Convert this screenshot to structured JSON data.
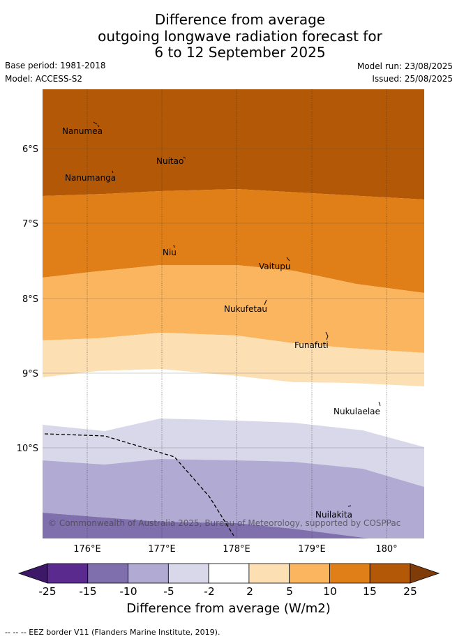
{
  "title": {
    "line1": "Difference from average",
    "line2": "outgoing longwave radiation forecast for",
    "line3": "6 to 12 September 2025"
  },
  "meta": {
    "base_period": "Base period: 1981-2018",
    "model": "Model: ACCESS-S2",
    "model_run": "Model run: 23/08/2025",
    "issued": "Issued: 25/08/2025"
  },
  "map": {
    "lat_labels": [
      "6°S",
      "7°S",
      "8°S",
      "9°S",
      "10°S"
    ],
    "lon_labels": [
      "176°E",
      "177°E",
      "178°E",
      "179°E",
      "180°"
    ],
    "places": [
      "Nanumea",
      "Nuitao",
      "Nanumanga",
      "Niu",
      "Vaitupu",
      "Nukufetau",
      "Funafuti",
      "Nukulaelae",
      "Nuilakita"
    ],
    "copyright": "© Commonwealth of Australia 2025, Bureau of Meteorology, supported by COSPPac"
  },
  "colorbar": {
    "ticks": [
      "-25",
      "-15",
      "-10",
      "-5",
      "-2",
      "2",
      "5",
      "10",
      "15",
      "25"
    ],
    "colors": [
      "#3d1768",
      "#5a2a8e",
      "#7f6fac",
      "#b1aad2",
      "#d8d8ea",
      "#ffffff",
      "#fddfb4",
      "#fbb55f",
      "#e07f17",
      "#b35806",
      "#7f3b08"
    ],
    "label": "Difference from average (W/m2)"
  },
  "footer": "--  --  -- EEZ border V11 (Flanders Marine Institute, 2019)."
}
